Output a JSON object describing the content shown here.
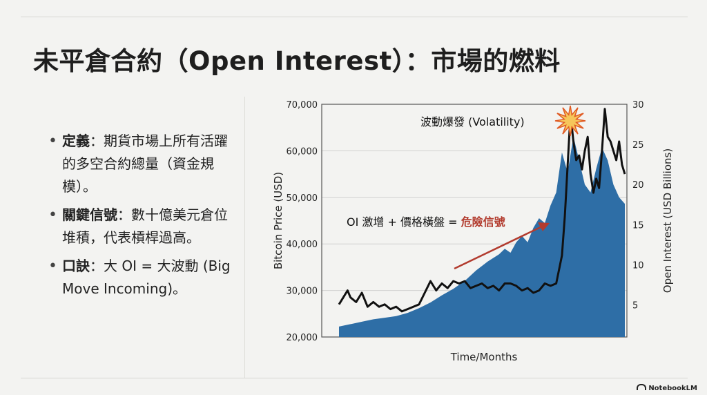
{
  "title": "未平倉合約（Open Interest）：市場的燃料",
  "bullets": [
    {
      "term": "定義",
      "text": "：期貨市場上所有活躍的多空合約總量（資金規模）。"
    },
    {
      "term": "關鍵信號",
      "text": "：數十億美元倉位堆積，代表槓桿過高。"
    },
    {
      "term": "口訣",
      "text": "：大 OI = 大波動 (Big Move Incoming)。"
    }
  ],
  "chart_data": {
    "type": "area",
    "xlabel": "Time/Months",
    "ylabel": "Bitcoin Price (USD)",
    "y2label": "Open Interest (USD Billions)",
    "ylim": [
      20000,
      70000
    ],
    "y2lim": [
      1,
      30
    ],
    "yticks": [
      "20,000",
      "30,000",
      "40,000",
      "50,000",
      "60,000",
      "70,000"
    ],
    "y2ticks": [
      "5",
      "10",
      "15",
      "20",
      "25",
      "30"
    ],
    "grid": true,
    "series": [
      {
        "name": "Open Interest",
        "kind": "area",
        "axis": "right",
        "color": "#2e6ea6",
        "x": [
          0,
          4,
          8,
          12,
          16,
          20,
          24,
          28,
          32,
          36,
          40,
          44,
          48,
          52,
          56,
          58,
          60,
          62,
          64,
          66,
          68,
          70,
          72,
          74,
          76,
          78,
          80,
          82,
          84,
          86,
          88,
          90,
          92,
          94,
          96,
          98,
          100
        ],
        "values": [
          2.3,
          2.6,
          2.9,
          3.2,
          3.4,
          3.6,
          4.0,
          4.6,
          5.3,
          6.2,
          7.0,
          8.0,
          9.3,
          10.4,
          11.3,
          12.0,
          11.5,
          12.8,
          13.6,
          12.8,
          14.6,
          15.8,
          15.2,
          17.4,
          19.0,
          24.0,
          21.5,
          26.0,
          23.0,
          20.0,
          19.0,
          22.0,
          24.6,
          23.0,
          20.0,
          18.4,
          17.6
        ]
      },
      {
        "name": "Bitcoin Price",
        "kind": "line",
        "axis": "left",
        "color": "#111111",
        "x": [
          0,
          2,
          3,
          4,
          6,
          8,
          10,
          12,
          14,
          16,
          18,
          20,
          22,
          24,
          26,
          28,
          30,
          32,
          34,
          36,
          38,
          40,
          42,
          44,
          46,
          48,
          50,
          52,
          54,
          56,
          58,
          60,
          62,
          64,
          66,
          68,
          70,
          72,
          74,
          76,
          78,
          79,
          80,
          81,
          82,
          83,
          84,
          85,
          86,
          87,
          88,
          89,
          90,
          91,
          92,
          93,
          94,
          95,
          96,
          97,
          98,
          99,
          100
        ],
        "values": [
          27000,
          29000,
          30000,
          28500,
          27500,
          29500,
          26500,
          27500,
          26500,
          27000,
          26000,
          26500,
          25500,
          26000,
          26500,
          27000,
          29500,
          32000,
          30000,
          31500,
          30500,
          32000,
          31500,
          32000,
          30500,
          31000,
          31500,
          30500,
          31000,
          30000,
          31500,
          31500,
          31000,
          30000,
          30500,
          29500,
          30000,
          31500,
          31000,
          31500,
          37500,
          46000,
          57000,
          68000,
          62000,
          58000,
          59000,
          56000,
          60000,
          63000,
          55000,
          51000,
          54000,
          52000,
          60000,
          69000,
          63000,
          62000,
          60000,
          58000,
          62000,
          57000,
          55000
        ]
      }
    ],
    "annotations": [
      {
        "text": "波動爆發 (Volatility)",
        "icon": "burst-icon"
      },
      {
        "text_plain": "OI 激增 + 價格橫盤 = ",
        "text_highlight": "危險信號",
        "highlight_color": "#b23b2e",
        "arrow_color": "#b23b2e"
      }
    ]
  },
  "logo": "NotebookLM"
}
